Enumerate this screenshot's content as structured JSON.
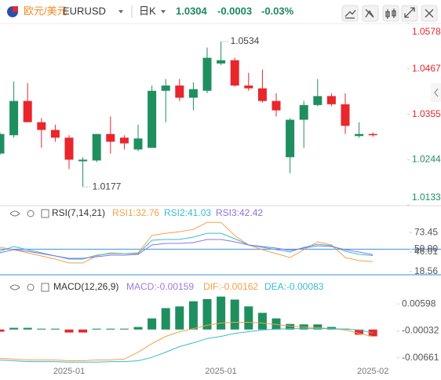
{
  "header": {
    "pair_name": "欧元/美元",
    "symbol": "EURUSD",
    "period": "日K",
    "price": "1.0304",
    "change": "-0.0003",
    "change_pct": "-0.03%"
  },
  "chart_data": [
    {
      "type": "candlestick",
      "up_color": "#1f8f5f",
      "down_color": "#e8262b",
      "ylim": [
        1.0133,
        1.0578
      ],
      "yticks": [
        1.0578,
        1.0467,
        1.0355,
        1.0244,
        1.0133
      ],
      "open": [
        1.0259,
        1.0304,
        1.0388,
        1.0336,
        1.0317,
        1.0298,
        1.024,
        1.0242,
        1.0307,
        1.0298,
        1.0269,
        1.0273,
        1.0413,
        1.0426,
        1.0396,
        1.0413,
        1.048,
        1.0488,
        1.0426,
        1.0419,
        1.0388,
        1.025,
        1.0342,
        1.0378,
        1.04,
        1.038,
        1.0302,
        1.0307
      ],
      "high": [
        1.0311,
        1.0436,
        1.0432,
        1.0346,
        1.033,
        1.0304,
        1.025,
        1.0307,
        1.035,
        1.0304,
        1.033,
        1.0426,
        1.0442,
        1.0442,
        1.0434,
        1.0519,
        1.0534,
        1.0494,
        1.0457,
        1.0465,
        1.0407,
        1.0346,
        1.0388,
        1.0442,
        1.0407,
        1.0407,
        1.0336,
        1.0311
      ],
      "low": [
        1.0256,
        1.0298,
        1.0336,
        1.0273,
        1.0288,
        1.0221,
        1.0177,
        1.0238,
        1.0259,
        1.0269,
        1.0265,
        1.0273,
        1.0336,
        1.0388,
        1.0365,
        1.0407,
        1.0476,
        1.0423,
        1.0413,
        1.0384,
        1.035,
        1.0211,
        1.0273,
        1.0375,
        1.0375,
        1.0307,
        1.0298,
        1.03
      ],
      "close": [
        1.0307,
        1.0388,
        1.0336,
        1.0317,
        1.0298,
        1.0244,
        1.0244,
        1.0307,
        1.0288,
        1.0284,
        1.0296,
        1.0413,
        1.0426,
        1.0396,
        1.0417,
        1.0494,
        1.0488,
        1.0426,
        1.0419,
        1.0388,
        1.0365,
        1.0342,
        1.0378,
        1.04,
        1.038,
        1.0327,
        1.0307,
        1.0304
      ]
    },
    {
      "type": "line",
      "title": "RSI(7,14,21)",
      "ylim": [
        14,
        89
      ],
      "yticks": [
        73.45,
        {
          "value": 50,
          "label": "50.00"
        },
        46.01,
        18.56
      ],
      "hline": 50,
      "hline_color": "#3a8ee6",
      "series": [
        {
          "name": "RSI1:32.76",
          "color": "#f5a04a",
          "values": [
            52.6,
            49.3,
            44.9,
            40.5,
            36.1,
            30.6,
            30.6,
            40.5,
            44.9,
            43.8,
            44.9,
            69.1,
            72.4,
            74.5,
            77.8,
            87.7,
            87.7,
            69.1,
            55.9,
            49.3,
            43.8,
            38.3,
            49.3,
            60.3,
            55.9,
            38.3,
            33.9,
            32.76
          ]
        },
        {
          "name": "RSI2:41.03",
          "color": "#3bbbd0",
          "values": [
            47.1,
            53.7,
            49.3,
            44.9,
            40.5,
            36.1,
            36.1,
            41.6,
            43.8,
            43.8,
            43.8,
            62.5,
            63.6,
            63.6,
            66.9,
            72.4,
            72.4,
            64.7,
            55.9,
            52.6,
            49.3,
            46.0,
            52.6,
            57.0,
            54.8,
            47.1,
            42.7,
            41.03
          ]
        },
        {
          "name": "RSI3:42.42",
          "color": "#8c74e0",
          "values": [
            44.9,
            49.3,
            47.1,
            43.8,
            40.5,
            37.2,
            37.2,
            39.4,
            41.6,
            41.6,
            42.7,
            55.9,
            58.1,
            58.1,
            59.2,
            63.6,
            63.6,
            60.3,
            55.9,
            53.7,
            51.5,
            48.2,
            51.5,
            54.8,
            53.7,
            49.3,
            46.0,
            42.42
          ]
        }
      ]
    },
    {
      "type": "combo",
      "title": "MACD(12,26,9)",
      "up_color": "#1f8f5f",
      "down_color": "#e8262b",
      "ylim": [
        -0.0083,
        0.0082
      ],
      "yticks": [
        0.00598,
        -0.00032,
        -0.00661
      ],
      "categories": [
        null,
        null,
        null,
        null,
        null,
        "2025-01",
        null,
        null,
        null,
        null,
        null,
        null,
        null,
        null,
        null,
        null,
        "2025-01",
        null,
        null,
        null,
        null,
        null,
        null,
        null,
        null,
        null,
        null,
        "2025-02"
      ],
      "series": [
        {
          "name": "MACD:-0.00159",
          "type": "bar",
          "color": "#9c7be0",
          "values": [
            -0.0005,
            0.0004,
            0.0004,
            0.0002,
            0.0002,
            -0.0007,
            -0.0007,
            0.0002,
            0.0002,
            0.0002,
            0.0006,
            0.0026,
            0.005,
            0.0054,
            0.0066,
            0.0071,
            0.0077,
            0.007,
            0.0054,
            0.0039,
            0.0026,
            0.0013,
            0.0012,
            0.0012,
            0.0006,
            0.0002,
            -0.0012,
            -0.00159
          ]
        },
        {
          "name": "DIF:-0.00162",
          "type": "line",
          "color": "#f5a04a",
          "values": [
            -0.0067,
            -0.0069,
            -0.0071,
            -0.0071,
            -0.0071,
            -0.0073,
            -0.0073,
            -0.0071,
            -0.0071,
            -0.0069,
            -0.0053,
            -0.0033,
            -0.0016,
            -0.0005,
            0.0002,
            0.001,
            0.0015,
            0.0017,
            0.0017,
            0.0015,
            0.0012,
            0.0008,
            0.0006,
            0.0004,
            0.0002,
            -0.0001,
            -0.0009,
            -0.00162
          ]
        },
        {
          "name": "DEA:-0.00083",
          "type": "line",
          "color": "#3bbbd0",
          "values": [
            -0.0071,
            -0.0073,
            -0.0075,
            -0.0075,
            -0.0075,
            -0.0076,
            -0.0076,
            -0.0076,
            -0.0075,
            -0.0075,
            -0.0073,
            -0.0065,
            -0.0053,
            -0.004,
            -0.0031,
            -0.0021,
            -0.0016,
            -0.0009,
            -0.0005,
            -0.0001,
            0.0001,
            0.0002,
            0.0002,
            0.0002,
            0.0002,
            0.0001,
            -0.0001,
            -0.00083
          ]
        }
      ]
    }
  ]
}
